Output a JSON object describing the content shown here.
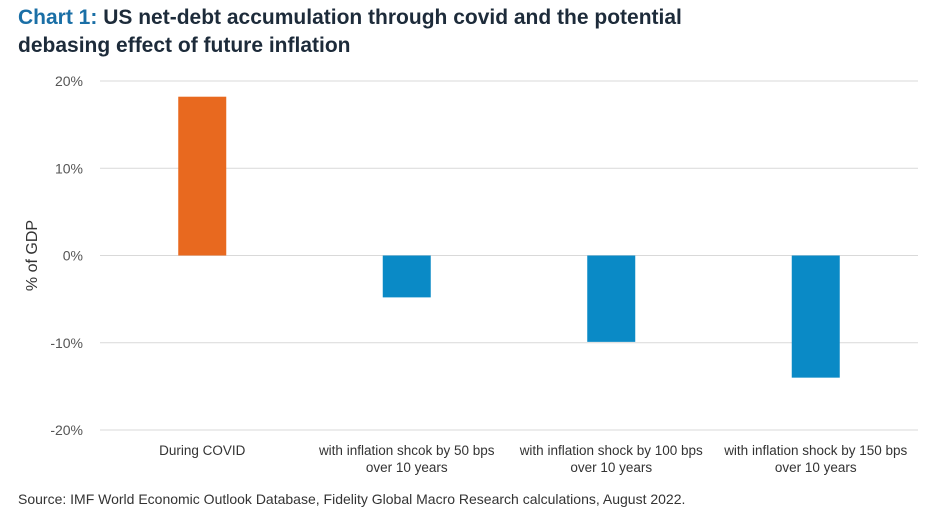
{
  "title": {
    "prefix": "Chart 1:",
    "line1": "US net-debt accumulation through covid and the potential",
    "line2": "debasing effect of future inflation"
  },
  "chart_data": {
    "type": "bar",
    "categories": [
      [
        "During COVID"
      ],
      [
        "with inflation shcok by 50 bps",
        "over 10 years"
      ],
      [
        "with inflation shock by 100 bps",
        "over 10 years"
      ],
      [
        "with inflation shock by 150 bps",
        "over 10 years"
      ]
    ],
    "values": [
      18.2,
      -4.8,
      -9.9,
      -14.0
    ],
    "colors": [
      "#e8691f",
      "#0a8ac6",
      "#0a8ac6",
      "#0a8ac6"
    ],
    "ylabel": "% of GDP",
    "ylim": [
      -20,
      20
    ],
    "yticks": [
      20,
      10,
      0,
      -10,
      -20
    ],
    "ytick_labels": [
      "20%",
      "10%",
      "0%",
      "-10%",
      "-20%"
    ],
    "grid": true
  },
  "source": "Source: IMF World Economic Outlook Database, Fidelity Global Macro Research calculations, August 2022."
}
